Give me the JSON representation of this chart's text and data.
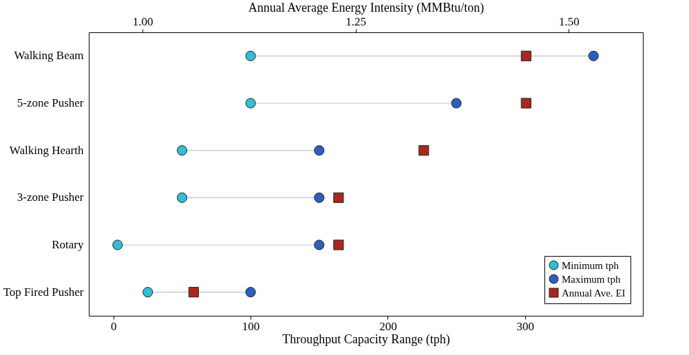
{
  "chart_data": {
    "type": "scatter",
    "orientation": "horizontal",
    "categories": [
      "Walking Beam",
      "5-zone Pusher",
      "Walking Hearth",
      "3-zone Pusher",
      "Rotary",
      "Top Fired Pusher"
    ],
    "series": [
      {
        "name": "Minimum tph",
        "color": "#33bcd4",
        "marker": "circle",
        "values": [
          100,
          100,
          50,
          50,
          3,
          25
        ]
      },
      {
        "name": "Maximum tph",
        "color": "#2e5fc0",
        "marker": "circle",
        "values": [
          350,
          250,
          150,
          150,
          150,
          100
        ]
      },
      {
        "name": "Annual Ave. EI",
        "color": "#a8281f",
        "marker": "square",
        "axis": "x2",
        "values": [
          1.45,
          1.45,
          1.33,
          1.23,
          1.23,
          1.06
        ]
      }
    ],
    "xlabel": "Throughput Capacity Range (tph)",
    "x2label": "Annual Average Energy Intensity (MMBtu/ton)",
    "xlim": [
      -18,
      386
    ],
    "xticks": [
      0,
      100,
      200,
      300
    ],
    "x2lim": [
      0.937,
      1.587
    ],
    "x2ticks": [
      {
        "value": 1,
        "label": "1.00"
      },
      {
        "value": 1.25,
        "label": "1.25"
      },
      {
        "value": 1.5,
        "label": "1.50"
      }
    ],
    "legend": "bottom right",
    "grid": false
  }
}
